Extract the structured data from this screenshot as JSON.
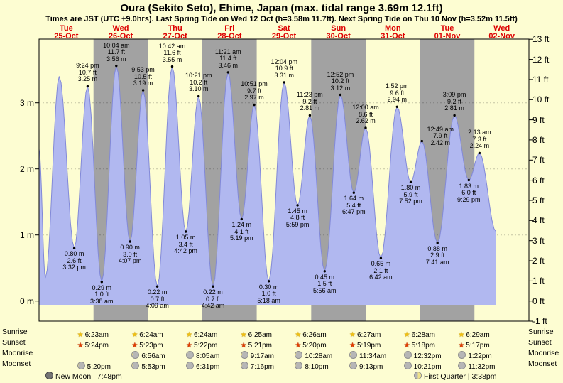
{
  "title": "Oura (Sekito Seto), Ehime, Japan (max. tidal range 3.69m 12.1ft)",
  "subtitle": "Times are JST (UTC +9.0hrs). Last Spring Tide on Wed 12 Oct (h=3.58m 11.7ft). Next Spring Tide on Thu 10 Nov (h=3.52m 11.5ft)",
  "colors": {
    "background": "#fdfdd2",
    "band_gray": "#a2a2a2",
    "band_yellow": "#fdfdd2",
    "tide_fill": "#b1b8f0",
    "tide_stroke": "#8289d8",
    "day_label_red": "#dd0000",
    "sunrise_star": "#f0c013",
    "sunset_star": "#e23c00"
  },
  "chart_data": {
    "type": "area",
    "title": "Tide height curve over 9 days",
    "x_range_days": 9,
    "y_left_unit": "m",
    "y_right_unit": "ft",
    "y_axis": {
      "min_ft": -1,
      "max_ft": 13,
      "min_m": -0.305,
      "max_m": 3.962
    },
    "grid": "horizontal-meters",
    "days": [
      {
        "name": "Tue",
        "date": "25-Oct"
      },
      {
        "name": "Wed",
        "date": "26-Oct"
      },
      {
        "name": "Thu",
        "date": "27-Oct"
      },
      {
        "name": "Fri",
        "date": "28-Oct"
      },
      {
        "name": "Sat",
        "date": "29-Oct"
      },
      {
        "name": "Sun",
        "date": "30-Oct"
      },
      {
        "name": "Mon",
        "date": "31-Oct"
      },
      {
        "name": "Tue",
        "date": "01-Nov"
      },
      {
        "name": "Wed",
        "date": "02-Nov"
      }
    ],
    "left_ticks": [
      {
        "m": 0,
        "label": "0 m"
      },
      {
        "m": 1,
        "label": "1 m"
      },
      {
        "m": 2,
        "label": "2 m"
      },
      {
        "m": 3,
        "label": "3 m"
      }
    ],
    "right_ticks": [
      {
        "ft": 13,
        "label": "13 ft"
      },
      {
        "ft": 12,
        "label": "12 ft"
      },
      {
        "ft": 11,
        "label": "11 ft"
      },
      {
        "ft": 10,
        "label": "10 ft"
      },
      {
        "ft": 9,
        "label": "9 ft"
      },
      {
        "ft": 8,
        "label": "8 ft"
      },
      {
        "ft": 7,
        "label": "7 ft"
      },
      {
        "ft": 6,
        "label": "6 ft"
      },
      {
        "ft": 5,
        "label": "5 ft"
      },
      {
        "ft": 4,
        "label": "4 ft"
      },
      {
        "ft": 3,
        "label": "3 ft"
      },
      {
        "ft": 2,
        "label": "2 ft"
      },
      {
        "ft": 1,
        "label": "1 ft"
      },
      {
        "ft": 0,
        "label": "0 ft"
      },
      {
        "ft": -1,
        "label": "-1 ft"
      }
    ],
    "tides": [
      {
        "kind": "start",
        "day": 0,
        "hour": 0.0,
        "m": 2.3,
        "labeled": false
      },
      {
        "kind": "low",
        "day": 0,
        "hour": 2.8,
        "m": 0.35,
        "labeled": false
      },
      {
        "kind": "high",
        "day": 0,
        "hour": 8.9,
        "m": 3.4,
        "labeled": false
      },
      {
        "kind": "low",
        "day": 0,
        "hour": 15.53,
        "m": 0.8,
        "ft": 2.6,
        "time": "3:32 pm",
        "labeled": true
      },
      {
        "kind": "high",
        "day": 0,
        "hour": 21.4,
        "m": 3.25,
        "ft": 10.7,
        "time": "9:24 pm",
        "labeled": true
      },
      {
        "kind": "low",
        "day": 1,
        "hour": 3.63,
        "m": 0.29,
        "ft": 1.0,
        "time": "3:38 am",
        "labeled": true
      },
      {
        "kind": "high",
        "day": 1,
        "hour": 10.07,
        "m": 3.56,
        "ft": 11.7,
        "time": "10:04 am",
        "labeled": true
      },
      {
        "kind": "low",
        "day": 1,
        "hour": 16.12,
        "m": 0.9,
        "ft": 3.0,
        "time": "4:07 pm",
        "labeled": true
      },
      {
        "kind": "high",
        "day": 1,
        "hour": 21.88,
        "m": 3.19,
        "ft": 10.5,
        "time": "9:53 pm",
        "labeled": true
      },
      {
        "kind": "low",
        "day": 2,
        "hour": 4.15,
        "m": 0.22,
        "ft": 0.7,
        "time": "4:09 am",
        "labeled": true
      },
      {
        "kind": "high",
        "day": 2,
        "hour": 10.7,
        "m": 3.55,
        "ft": 11.6,
        "time": "10:42 am",
        "labeled": true
      },
      {
        "kind": "low",
        "day": 2,
        "hour": 16.7,
        "m": 1.05,
        "ft": 3.4,
        "time": "4:42 pm",
        "labeled": true
      },
      {
        "kind": "high",
        "day": 2,
        "hour": 22.35,
        "m": 3.1,
        "ft": 10.2,
        "time": "10:21 pm",
        "labeled": true
      },
      {
        "kind": "low",
        "day": 3,
        "hour": 4.7,
        "m": 0.22,
        "ft": 0.7,
        "time": "4:42 am",
        "labeled": true
      },
      {
        "kind": "high",
        "day": 3,
        "hour": 11.35,
        "m": 3.46,
        "ft": 11.4,
        "time": "11:21 am",
        "labeled": true
      },
      {
        "kind": "low",
        "day": 3,
        "hour": 17.32,
        "m": 1.24,
        "ft": 4.1,
        "time": "5:19 pm",
        "labeled": true
      },
      {
        "kind": "high",
        "day": 3,
        "hour": 22.85,
        "m": 2.97,
        "ft": 9.7,
        "time": "10:51 pm",
        "labeled": true
      },
      {
        "kind": "low",
        "day": 4,
        "hour": 5.3,
        "m": 0.3,
        "ft": 1.0,
        "time": "5:18 am",
        "labeled": true
      },
      {
        "kind": "high",
        "day": 4,
        "hour": 12.07,
        "m": 3.31,
        "ft": 10.9,
        "time": "12:04 pm",
        "labeled": true
      },
      {
        "kind": "low",
        "day": 4,
        "hour": 17.98,
        "m": 1.45,
        "ft": 4.8,
        "time": "5:59 pm",
        "labeled": true
      },
      {
        "kind": "high",
        "day": 4,
        "hour": 23.38,
        "m": 2.81,
        "ft": 9.2,
        "time": "11:23 pm",
        "labeled": true
      },
      {
        "kind": "low",
        "day": 5,
        "hour": 5.93,
        "m": 0.45,
        "ft": 1.5,
        "time": "5:56 am",
        "labeled": true
      },
      {
        "kind": "high",
        "day": 5,
        "hour": 12.87,
        "m": 3.12,
        "ft": 10.2,
        "time": "12:52 pm",
        "labeled": true
      },
      {
        "kind": "low",
        "day": 5,
        "hour": 18.78,
        "m": 1.64,
        "ft": 5.4,
        "time": "6:47 pm",
        "labeled": true
      },
      {
        "kind": "high",
        "day": 6,
        "hour": 0.0,
        "m": 2.62,
        "ft": 8.6,
        "time": "12:00 am",
        "labeled": true
      },
      {
        "kind": "low",
        "day": 6,
        "hour": 6.7,
        "m": 0.65,
        "ft": 2.1,
        "time": "6:42 am",
        "labeled": true
      },
      {
        "kind": "high",
        "day": 6,
        "hour": 13.87,
        "m": 2.94,
        "ft": 9.6,
        "time": "1:52 pm",
        "labeled": true
      },
      {
        "kind": "low",
        "day": 6,
        "hour": 19.87,
        "m": 1.8,
        "ft": 5.9,
        "time": "7:52 pm",
        "labeled": true
      },
      {
        "kind": "high",
        "day": 7,
        "hour": 0.82,
        "m": 2.42,
        "ft": 7.9,
        "time": "12:49 am",
        "labeled": true,
        "label_dx": 26,
        "label_dy": 12
      },
      {
        "kind": "low",
        "day": 7,
        "hour": 7.68,
        "m": 0.88,
        "ft": 2.9,
        "time": "7:41 am",
        "labeled": true
      },
      {
        "kind": "high",
        "day": 7,
        "hour": 15.15,
        "m": 2.81,
        "ft": 9.2,
        "time": "3:09 pm",
        "labeled": true
      },
      {
        "kind": "low",
        "day": 7,
        "hour": 21.48,
        "m": 1.83,
        "ft": 6.0,
        "time": "9:29 pm",
        "labeled": true
      },
      {
        "kind": "high",
        "day": 8,
        "hour": 2.22,
        "m": 2.24,
        "ft": 7.3,
        "time": "2:13 am",
        "labeled": true
      },
      {
        "kind": "end",
        "day": 8,
        "hour": 9.5,
        "m": 1.05,
        "labeled": false
      }
    ]
  },
  "astro": {
    "rows": [
      {
        "name": "Sunrise",
        "icon": "star",
        "start": 1,
        "times": [
          "6:23am",
          "6:24am",
          "6:24am",
          "6:25am",
          "6:26am",
          "6:27am",
          "6:28am",
          "6:29am"
        ]
      },
      {
        "name": "Sunset",
        "icon": "star",
        "start": 1,
        "times": [
          "5:24pm",
          "5:23pm",
          "5:22pm",
          "5:21pm",
          "5:20pm",
          "5:19pm",
          "5:18pm",
          "5:17pm"
        ]
      },
      {
        "name": "Moonrise",
        "icon": "moon",
        "start": 2,
        "times": [
          "6:56am",
          "8:05am",
          "9:17am",
          "10:28am",
          "11:34am",
          "12:32pm",
          "1:22pm"
        ]
      },
      {
        "name": "Moonset",
        "icon": "moon",
        "start": 1,
        "times": [
          "5:20pm",
          "5:53pm",
          "6:31pm",
          "7:16pm",
          "8:10pm",
          "9:13pm",
          "10:21pm",
          "11:32pm"
        ]
      }
    ],
    "phases": [
      {
        "text": "New Moon | 7:48pm",
        "icon": "new-moon",
        "align": "left"
      },
      {
        "text": "First Quarter | 3:38pm",
        "icon": "first-quarter",
        "align": "right"
      }
    ]
  }
}
